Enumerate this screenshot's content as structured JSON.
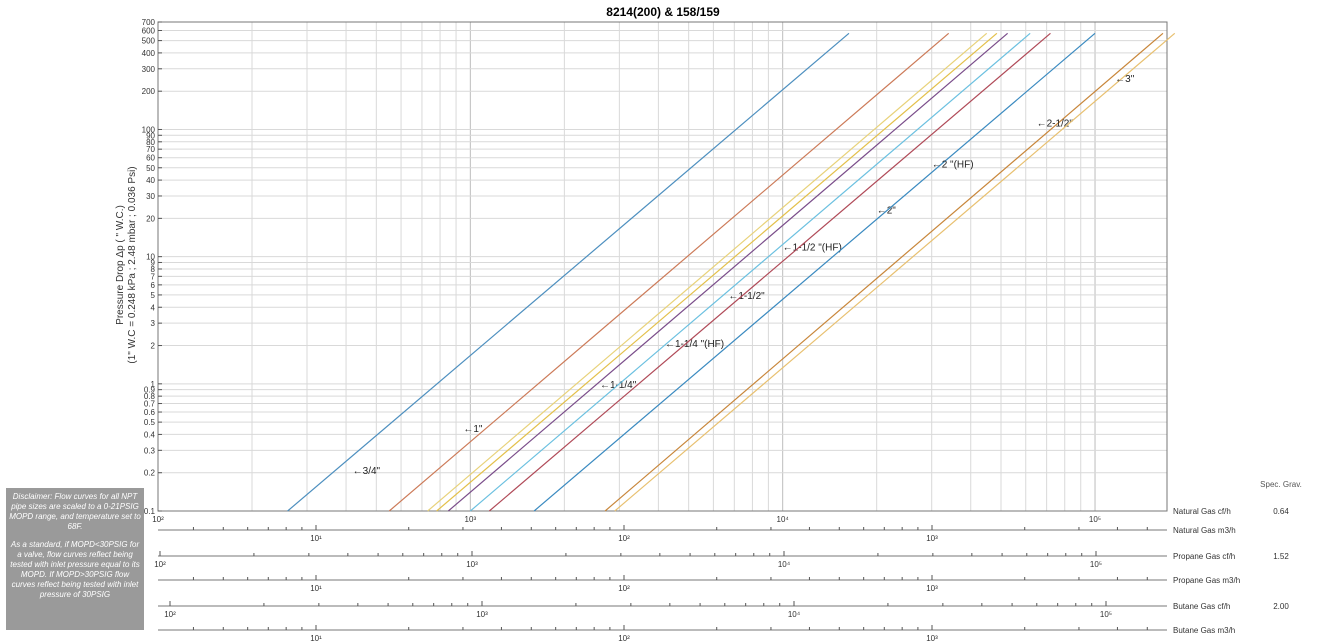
{
  "chart_data": {
    "type": "line",
    "title": "8214(200) & 158/159",
    "ylabel": "Pressure Drop Δp ( \" W.C.)",
    "ylabel2": "(1\" W.C = 0.248 kPa ; 2.48 mbar ; 0.036 Psi)",
    "xscale": "log",
    "yscale": "log",
    "xlim": [
      100,
      170000
    ],
    "ylim": [
      0.1,
      700
    ],
    "grid": true,
    "y_ticks": [
      "0.1",
      "0.2",
      "0.3",
      "0.4",
      "0.5",
      "0.6",
      "0.7",
      "0.8",
      "0.9",
      "1",
      "2",
      "3",
      "4",
      "5",
      "6",
      "7",
      "8",
      "9",
      "10",
      "20",
      "30",
      "40",
      "50",
      "60",
      "70",
      "80",
      "90",
      "100",
      "200",
      "300",
      "400",
      "500",
      "600",
      "700"
    ],
    "series": [
      {
        "name": "3/4\"",
        "label": "←3/4\"",
        "color": "#4d8fbf",
        "points": [
          [
            260,
            0.1
          ],
          [
            16300,
            570
          ]
        ],
        "label_at": [
          420,
          0.21
        ]
      },
      {
        "name": "1\"",
        "label": "←1\"",
        "color": "#cc7a58",
        "points": [
          [
            550,
            0.1
          ],
          [
            34000,
            570
          ]
        ],
        "label_at": [
          950,
          0.45
        ]
      },
      {
        "name": "1-1/4\"",
        "label": "←1-1/4\"",
        "color": "#e3c04a",
        "points": [
          [
            780,
            0.1
          ],
          [
            48500,
            570
          ]
        ],
        "label_at": [
          2600,
          1.0
        ]
      },
      {
        "name": "1-1/4 \"(HF)",
        "label": "←1-1/4 \"(HF)",
        "color": "#e8d27a",
        "points": [
          [
            730,
            0.1
          ],
          [
            45000,
            570
          ]
        ],
        "label_at": [
          4200,
          2.1
        ]
      },
      {
        "name": "1-1/2\"",
        "label": "←1-1/2\"",
        "color": "#7a4d8a",
        "points": [
          [
            850,
            0.1
          ],
          [
            52500,
            570
          ]
        ],
        "label_at": [
          6700,
          5.0
        ]
      },
      {
        "name": "1-1/2 \"(HF)",
        "label": "←1-1/2 \"(HF)",
        "color": "#6bc0e0",
        "points": [
          [
            1000,
            0.1
          ],
          [
            62000,
            570
          ]
        ],
        "label_at": [
          10000,
          12.0
        ]
      },
      {
        "name": "2\"",
        "label": "←2\"",
        "color": "#b04a58",
        "points": [
          [
            1150,
            0.1
          ],
          [
            72000,
            570
          ]
        ],
        "label_at": [
          20000,
          23.5
        ]
      },
      {
        "name": "2 \"(HF)",
        "label": "←2 \"(HF)",
        "color": "#3a8ac0",
        "points": [
          [
            1600,
            0.1
          ],
          [
            100000,
            570
          ]
        ],
        "label_at": [
          30000,
          54.0
        ]
      },
      {
        "name": "2-1/2\"",
        "label": "←2-1/2\"",
        "color": "#c8863a",
        "points": [
          [
            2700,
            0.1
          ],
          [
            165000,
            570
          ]
        ],
        "label_at": [
          65000,
          113.0
        ]
      },
      {
        "name": "3\"",
        "label": "←3\"",
        "color": "#e8c070",
        "points": [
          [
            2900,
            0.1
          ],
          [
            180000,
            570
          ]
        ],
        "label_at": [
          116000,
          255.0
        ]
      }
    ],
    "secondary_axes": [
      {
        "name": "Natural Gas cf/h",
        "ticks": [
          "10²",
          "10³",
          "10⁴",
          "10⁵"
        ],
        "sg": "0.64",
        "type": "main"
      },
      {
        "name": "Natural Gas m3/h",
        "ticks": [
          "10¹",
          "10²",
          "10³"
        ]
      },
      {
        "name": "Propane Gas cf/h",
        "ticks": [
          "10²",
          "10³",
          "10⁴",
          "10⁵"
        ],
        "sg": "1.52"
      },
      {
        "name": "Propane Gas m3/h",
        "ticks": [
          "10¹",
          "10²",
          "10³"
        ]
      },
      {
        "name": "Butane Gas cf/h",
        "ticks": [
          "10²",
          "10³",
          "10⁴",
          "10⁵"
        ],
        "sg": "2.00"
      },
      {
        "name": "Butane Gas m3/h",
        "ticks": [
          "10¹",
          "10²",
          "10³"
        ]
      }
    ],
    "spec_grav_label": "Spec. Grav."
  },
  "disclaimer": {
    "p1": "Disclaimer: Flow curves for all NPT pipe sizes are scaled to a 0-21PSIG MOPD range, and temperature set to 68F.",
    "p2": "As a standard, if MOPD<30PSIG for a valve, flow curves reflect being tested with inlet pressure equal to its MOPD. If MOPD>30PSIG flow curves reflect being tested with inlet pressure of 30PSIG"
  }
}
